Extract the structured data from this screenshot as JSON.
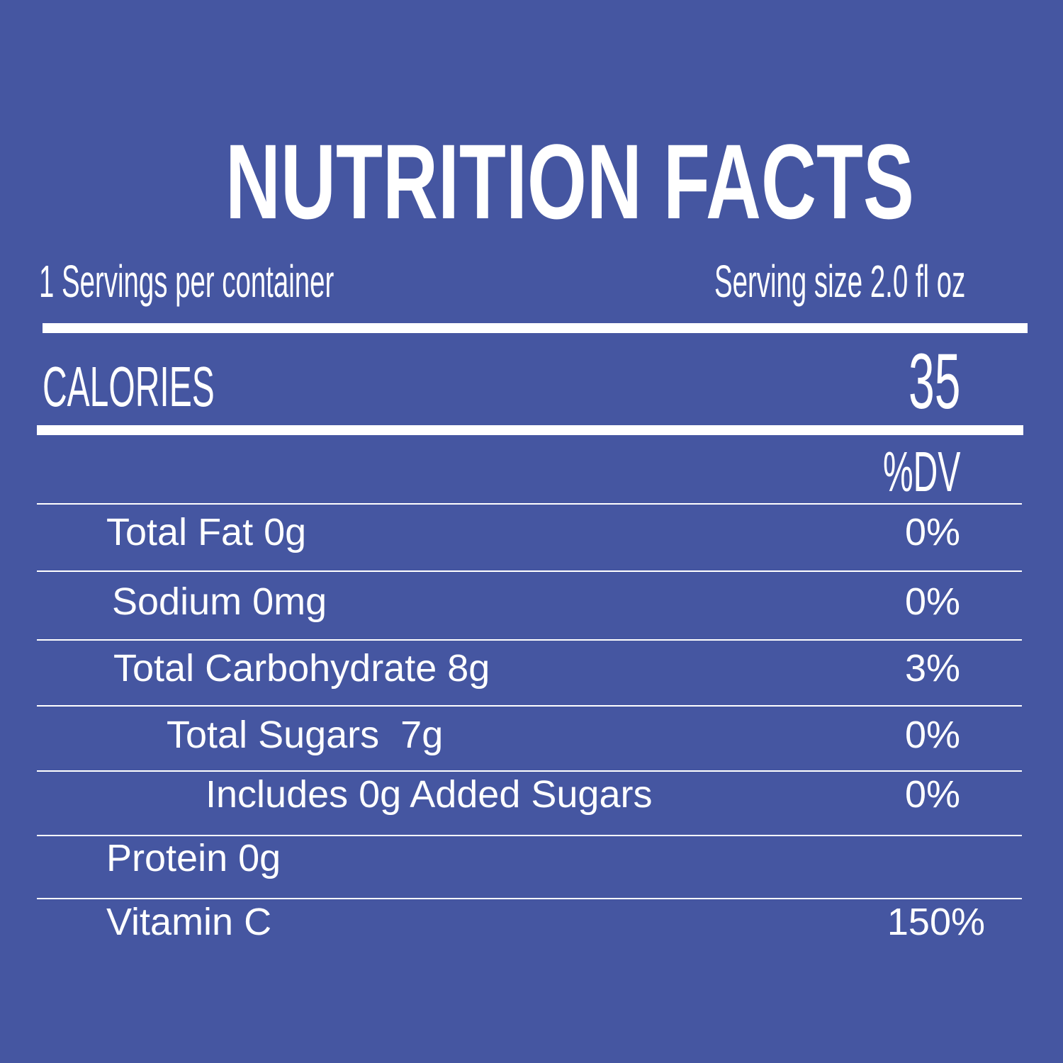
{
  "title": "NUTRITION FACTS",
  "servings": "1 Servings per container",
  "serving_size": "Serving size 2.0 fl oz",
  "calories": {
    "label": "CALORIES",
    "value": "35"
  },
  "dv_header": "%DV",
  "rows": [
    [
      "Total Fat 0g",
      "0%"
    ],
    [
      "Sodium 0mg",
      "0%"
    ],
    [
      "Total Carbohydrate 8g",
      "3%"
    ],
    [
      "Total Sugars  7g",
      "0%"
    ],
    [
      "Includes 0g Added Sugars",
      "0%"
    ],
    [
      "Protein 0g"
    ],
    [
      "Vitamin C",
      "150%"
    ]
  ]
}
